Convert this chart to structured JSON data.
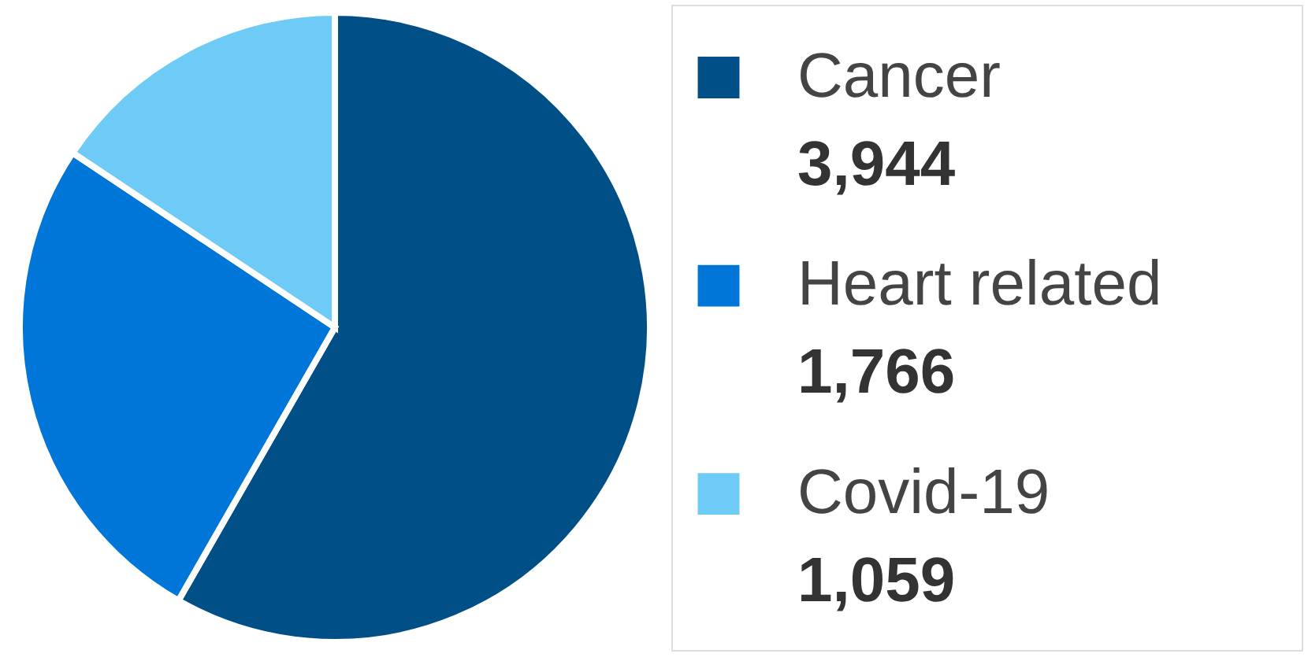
{
  "chart_data": {
    "type": "pie",
    "categories": [
      "Cancer",
      "Heart related",
      "Covid-19"
    ],
    "values": [
      3944,
      1766,
      1059
    ],
    "colors": [
      "#004f86",
      "#0077d8",
      "#6ecbf5"
    ],
    "legend": "right",
    "value_labels": [
      "3,944",
      "1,766",
      "1,059"
    ]
  }
}
